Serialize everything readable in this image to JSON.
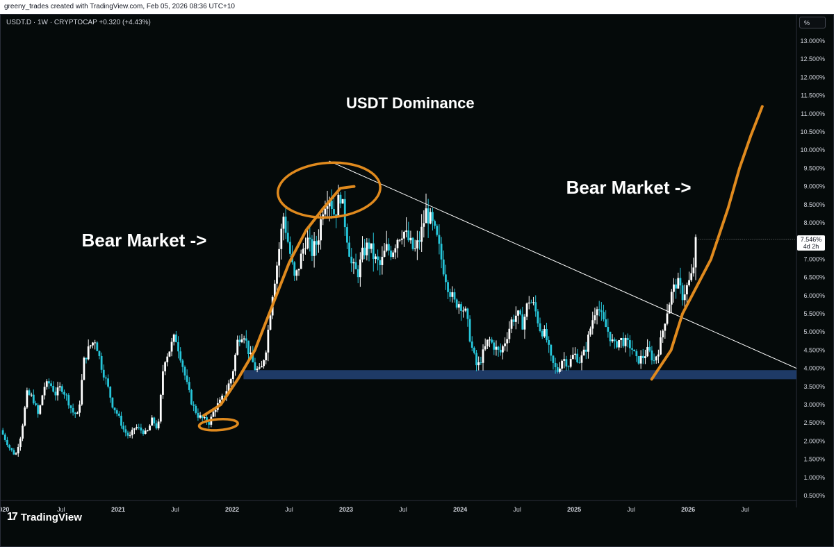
{
  "topbar": {
    "text": "greeny_trades created with TradingView.com, Feb 05, 2026 08:36 UTC+10"
  },
  "header": {
    "symbol_line": "USDT.D · 1W · CRYPTOCAP  +0.320 (+4.43%)"
  },
  "controls": {
    "percent_button": "%"
  },
  "price_badge": {
    "price": "7.546%",
    "countdown": "4d 2h"
  },
  "logo": {
    "mark": "17",
    "text": "TradingView"
  },
  "colors": {
    "background": "#050a0a",
    "up_candle": "#ffffff",
    "down_candle": "#26c6da",
    "annotation": "#e08a1e",
    "support_zone": "#1e3a66",
    "trendline": "#ffffff"
  },
  "chart_data": {
    "type": "candlestick",
    "title": "USDT Dominance",
    "xlabel": "",
    "ylabel": "",
    "ylim": [
      0.3,
      13.5
    ],
    "grid": false,
    "y_ticks": [
      "0.500%",
      "1.000%",
      "1.500%",
      "2.000%",
      "2.500%",
      "3.000%",
      "3.500%",
      "4.000%",
      "4.500%",
      "5.000%",
      "5.500%",
      "6.000%",
      "6.500%",
      "7.000%",
      "7.500%",
      "8.000%",
      "8.500%",
      "9.000%",
      "9.500%",
      "10.000%",
      "10.500%",
      "11.000%",
      "11.500%",
      "12.000%",
      "12.500%",
      "13.000%"
    ],
    "x_tick_labels": [
      {
        "label": "020",
        "t": 2020.0
      },
      {
        "label": "Jul",
        "t": 2020.5
      },
      {
        "label": "2021",
        "t": 2021.0
      },
      {
        "label": "Jul",
        "t": 2021.5
      },
      {
        "label": "2022",
        "t": 2022.0
      },
      {
        "label": "Jul",
        "t": 2022.5
      },
      {
        "label": "2023",
        "t": 2023.0
      },
      {
        "label": "Jul",
        "t": 2023.5
      },
      {
        "label": "2024",
        "t": 2024.0
      },
      {
        "label": "Jul",
        "t": 2024.5
      },
      {
        "label": "2025",
        "t": 2025.0
      },
      {
        "label": "Jul",
        "t": 2025.5
      },
      {
        "label": "2026",
        "t": 2026.0
      },
      {
        "label": "Jul",
        "t": 2026.5
      }
    ],
    "t_range": [
      2019.97,
      2026.95
    ],
    "close_series": [
      [
        2019.97,
        2.3
      ],
      [
        2020.05,
        1.8
      ],
      [
        2020.1,
        1.6
      ],
      [
        2020.15,
        2.2
      ],
      [
        2020.2,
        3.3
      ],
      [
        2020.25,
        3.2
      ],
      [
        2020.3,
        2.7
      ],
      [
        2020.35,
        3.5
      ],
      [
        2020.4,
        3.6
      ],
      [
        2020.45,
        3.3
      ],
      [
        2020.5,
        3.5
      ],
      [
        2020.55,
        3.2
      ],
      [
        2020.6,
        2.8
      ],
      [
        2020.65,
        2.7
      ],
      [
        2020.7,
        4.2
      ],
      [
        2020.75,
        4.6
      ],
      [
        2020.8,
        4.8
      ],
      [
        2020.85,
        4.1
      ],
      [
        2020.9,
        3.6
      ],
      [
        2020.95,
        3.0
      ],
      [
        2021.0,
        2.7
      ],
      [
        2021.05,
        2.3
      ],
      [
        2021.1,
        2.1
      ],
      [
        2021.15,
        2.4
      ],
      [
        2021.2,
        2.3
      ],
      [
        2021.25,
        2.2
      ],
      [
        2021.3,
        2.6
      ],
      [
        2021.35,
        2.3
      ],
      [
        2021.4,
        4.2
      ],
      [
        2021.45,
        4.5
      ],
      [
        2021.5,
        4.9
      ],
      [
        2021.55,
        4.3
      ],
      [
        2021.6,
        3.6
      ],
      [
        2021.65,
        3.0
      ],
      [
        2021.7,
        2.7
      ],
      [
        2021.75,
        2.6
      ],
      [
        2021.8,
        2.5
      ],
      [
        2021.85,
        2.9
      ],
      [
        2021.9,
        3.1
      ],
      [
        2021.95,
        3.4
      ],
      [
        2022.0,
        3.8
      ],
      [
        2022.05,
        4.8
      ],
      [
        2022.1,
        5.0
      ],
      [
        2022.15,
        4.4
      ],
      [
        2022.2,
        4.0
      ],
      [
        2022.25,
        3.9
      ],
      [
        2022.3,
        4.6
      ],
      [
        2022.35,
        6.0
      ],
      [
        2022.4,
        7.0
      ],
      [
        2022.45,
        8.2
      ],
      [
        2022.5,
        7.3
      ],
      [
        2022.55,
        6.4
      ],
      [
        2022.6,
        7.0
      ],
      [
        2022.65,
        7.6
      ],
      [
        2022.7,
        7.2
      ],
      [
        2022.75,
        7.5
      ],
      [
        2022.8,
        8.5
      ],
      [
        2022.85,
        8.8
      ],
      [
        2022.9,
        8.2
      ],
      [
        2022.95,
        8.8
      ],
      [
        2023.0,
        7.8
      ],
      [
        2023.05,
        6.8
      ],
      [
        2023.1,
        6.6
      ],
      [
        2023.15,
        7.2
      ],
      [
        2023.2,
        7.4
      ],
      [
        2023.25,
        7.0
      ],
      [
        2023.3,
        6.8
      ],
      [
        2023.35,
        7.3
      ],
      [
        2023.4,
        7.2
      ],
      [
        2023.45,
        7.6
      ],
      [
        2023.5,
        7.8
      ],
      [
        2023.55,
        7.5
      ],
      [
        2023.6,
        7.2
      ],
      [
        2023.65,
        7.6
      ],
      [
        2023.7,
        8.3
      ],
      [
        2023.75,
        8.0
      ],
      [
        2023.8,
        7.5
      ],
      [
        2023.85,
        6.8
      ],
      [
        2023.9,
        6.2
      ],
      [
        2023.95,
        5.8
      ],
      [
        2024.0,
        5.8
      ],
      [
        2024.05,
        5.5
      ],
      [
        2024.1,
        4.6
      ],
      [
        2024.15,
        4.0
      ],
      [
        2024.2,
        4.4
      ],
      [
        2024.25,
        4.8
      ],
      [
        2024.3,
        4.6
      ],
      [
        2024.35,
        4.4
      ],
      [
        2024.4,
        4.8
      ],
      [
        2024.45,
        5.3
      ],
      [
        2024.5,
        5.5
      ],
      [
        2024.55,
        5.2
      ],
      [
        2024.6,
        5.9
      ],
      [
        2024.65,
        5.7
      ],
      [
        2024.7,
        5.1
      ],
      [
        2024.75,
        4.9
      ],
      [
        2024.8,
        4.2
      ],
      [
        2024.85,
        3.9
      ],
      [
        2024.9,
        4.3
      ],
      [
        2024.95,
        4.1
      ],
      [
        2025.0,
        4.4
      ],
      [
        2025.05,
        4.2
      ],
      [
        2025.1,
        4.5
      ],
      [
        2025.15,
        5.2
      ],
      [
        2025.2,
        5.8
      ],
      [
        2025.25,
        5.3
      ],
      [
        2025.3,
        5.0
      ],
      [
        2025.35,
        4.6
      ],
      [
        2025.4,
        4.8
      ],
      [
        2025.45,
        4.7
      ],
      [
        2025.5,
        4.6
      ],
      [
        2025.55,
        4.2
      ],
      [
        2025.6,
        4.3
      ],
      [
        2025.65,
        4.5
      ],
      [
        2025.7,
        4.2
      ],
      [
        2025.75,
        4.6
      ],
      [
        2025.8,
        5.4
      ],
      [
        2025.85,
        6.0
      ],
      [
        2025.9,
        6.4
      ],
      [
        2025.95,
        6.0
      ],
      [
        2026.0,
        6.3
      ],
      [
        2026.04,
        6.6
      ],
      [
        2026.07,
        7.55
      ]
    ],
    "trendline": {
      "from": [
        2022.85,
        9.7
      ],
      "to": [
        2026.95,
        4.0
      ]
    },
    "support_zone": {
      "t_from": 2022.1,
      "t_to": 2026.95,
      "y_from": 3.7,
      "y_to": 3.95
    },
    "annotations": [
      {
        "text": "USDT Dominance",
        "t": 2023.0,
        "y": 11.15
      },
      {
        "text": "Bear Market ->",
        "t": 2020.68,
        "y": 7.35
      },
      {
        "text": "Bear Market ->",
        "t": 2024.93,
        "y": 8.8
      }
    ],
    "hand_drawn": {
      "left_curve": [
        [
          2021.75,
          2.7
        ],
        [
          2021.9,
          3.0
        ],
        [
          2022.05,
          3.7
        ],
        [
          2022.2,
          4.5
        ],
        [
          2022.35,
          5.7
        ],
        [
          2022.5,
          6.9
        ],
        [
          2022.65,
          7.8
        ],
        [
          2022.8,
          8.4
        ],
        [
          2022.95,
          8.95
        ],
        [
          2023.07,
          9.0
        ]
      ],
      "right_curve": [
        [
          2025.68,
          3.7
        ],
        [
          2025.85,
          4.5
        ],
        [
          2025.95,
          5.5
        ],
        [
          2026.1,
          6.4
        ],
        [
          2026.2,
          7.0
        ],
        [
          2026.35,
          8.4
        ],
        [
          2026.45,
          9.5
        ],
        [
          2026.55,
          10.4
        ],
        [
          2026.65,
          11.2
        ]
      ],
      "ellipse_top": {
        "t": 2022.85,
        "y": 8.9,
        "rt": 0.45,
        "ry": 0.75
      },
      "ellipse_bottom": {
        "t": 2021.88,
        "y": 2.45,
        "rt": 0.17,
        "ry": 0.15
      }
    }
  }
}
